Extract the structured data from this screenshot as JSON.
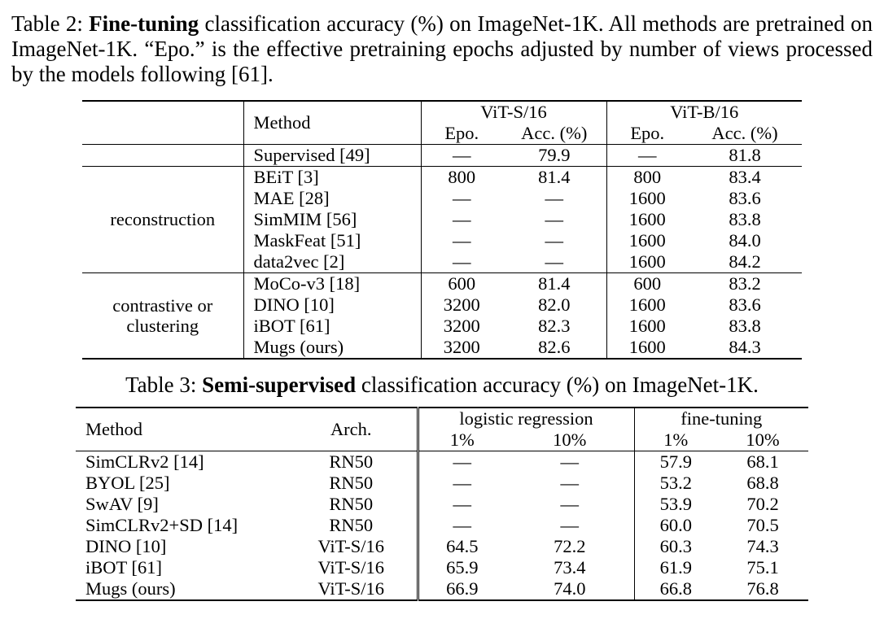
{
  "table2": {
    "caption": {
      "prefix": "Table 2: ",
      "bold": "Fine-tuning",
      "suffix": " classification accuracy (%) on ImageNet-1K. All methods are pretrained on ImageNet-1K. “Epo.” is the effective pretraining epochs adjusted by number of views processed by the models following [61]."
    },
    "header": {
      "method": "Method",
      "vit_s": "ViT-S/16",
      "vit_b": "ViT-B/16",
      "epo_s": "Epo.",
      "acc_s": "Acc. (%)",
      "epo_b": "Epo.",
      "acc_b": "Acc. (%)"
    },
    "groups": {
      "reconstruction": "reconstruction",
      "contrastive": "contrastive or clustering"
    },
    "rows": [
      {
        "method": "Supervised [49]",
        "s_epo": "—",
        "s_acc": "79.9",
        "b_epo": "—",
        "b_acc": "81.8"
      },
      {
        "method": "BEiT [3]",
        "s_epo": "800",
        "s_acc": "81.4",
        "b_epo": "800",
        "b_acc": "83.4"
      },
      {
        "method": "MAE [28]",
        "s_epo": "—",
        "s_acc": "—",
        "b_epo": "1600",
        "b_acc": "83.6"
      },
      {
        "method": "SimMIM [56]",
        "s_epo": "—",
        "s_acc": "—",
        "b_epo": "1600",
        "b_acc": "83.8"
      },
      {
        "method": "MaskFeat [51]",
        "s_epo": "—",
        "s_acc": "—",
        "b_epo": "1600",
        "b_acc": "84.0"
      },
      {
        "method": "data2vec [2]",
        "s_epo": "—",
        "s_acc": "—",
        "b_epo": "1600",
        "b_acc": "84.2"
      },
      {
        "method": "MoCo-v3 [18]",
        "s_epo": "600",
        "s_acc": "81.4",
        "b_epo": "600",
        "b_acc": "83.2"
      },
      {
        "method": "DINO [10]",
        "s_epo": "3200",
        "s_acc": "82.0",
        "b_epo": "1600",
        "b_acc": "83.6"
      },
      {
        "method": "iBOT [61]",
        "s_epo": "3200",
        "s_acc": "82.3",
        "b_epo": "1600",
        "b_acc": "83.8"
      },
      {
        "method": "Mugs (ours)",
        "s_epo": "3200",
        "s_acc": "82.6",
        "b_epo": "1600",
        "b_acc": "84.3"
      }
    ]
  },
  "table3": {
    "caption": {
      "prefix": "Table 3: ",
      "bold": "Semi-supervised",
      "suffix": " classification accuracy (%) on ImageNet-1K."
    },
    "header": {
      "method": "Method",
      "arch": "Arch.",
      "logreg": "logistic regression",
      "finetune": "fine-tuning",
      "p1_a": "1%",
      "p10_a": "10%",
      "p1_b": "1%",
      "p10_b": "10%"
    },
    "rows": [
      {
        "method": "SimCLRv2 [14]",
        "arch": "RN50",
        "lr1": "—",
        "lr10": "—",
        "ft1": "57.9",
        "ft10": "68.1"
      },
      {
        "method": "BYOL [25]",
        "arch": "RN50",
        "lr1": "—",
        "lr10": "—",
        "ft1": "53.2",
        "ft10": "68.8"
      },
      {
        "method": "SwAV [9]",
        "arch": "RN50",
        "lr1": "—",
        "lr10": "—",
        "ft1": "53.9",
        "ft10": "70.2"
      },
      {
        "method": "SimCLRv2+SD [14]",
        "arch": "RN50",
        "lr1": "—",
        "lr10": "—",
        "ft1": "60.0",
        "ft10": "70.5"
      },
      {
        "method": "DINO [10]",
        "arch": "ViT-S/16",
        "lr1": "64.5",
        "lr10": "72.2",
        "ft1": "60.3",
        "ft10": "74.3"
      },
      {
        "method": "iBOT [61]",
        "arch": "ViT-S/16",
        "lr1": "65.9",
        "lr10": "73.4",
        "ft1": "61.9",
        "ft10": "75.1"
      },
      {
        "method": "Mugs (ours)",
        "arch": "ViT-S/16",
        "lr1": "66.9",
        "lr10": "74.0",
        "ft1": "66.8",
        "ft10": "76.8"
      }
    ]
  }
}
